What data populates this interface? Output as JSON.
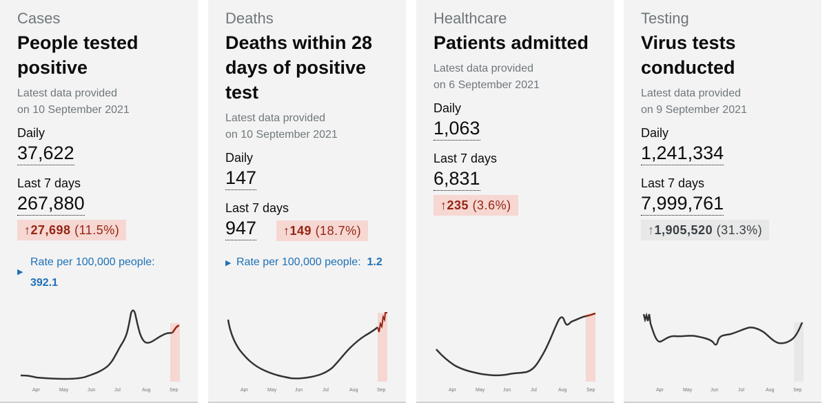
{
  "cards": [
    {
      "category": "Cases",
      "title": "People tested positive",
      "latest_label": "Latest data provided",
      "latest_date": "on 10 September 2021",
      "daily_label": "Daily",
      "daily_value": "37,622",
      "week_label": "Last 7 days",
      "week_value": "267,880",
      "change_arrow": "↑",
      "change_value": "27,698",
      "change_pct": "(11.5%)",
      "rate_label": "Rate per 100,000 people:",
      "rate_value": "392.1",
      "chart_ticks": [
        "Apr",
        "May",
        "Jun",
        "Jul",
        "Aug",
        "Sep"
      ]
    },
    {
      "category": "Deaths",
      "title": "Deaths within 28 days of positive test",
      "latest_label": "Latest data provided",
      "latest_date": "on 10 September 2021",
      "daily_label": "Daily",
      "daily_value": "147",
      "week_label": "Last 7 days",
      "week_value": "947",
      "change_arrow": "↑",
      "change_value": "149",
      "change_pct": "(18.7%)",
      "rate_label": "Rate per 100,000 people:",
      "rate_value": "1.2",
      "chart_ticks": [
        "Apr",
        "May",
        "Jun",
        "Jul",
        "Aug",
        "Sep"
      ]
    },
    {
      "category": "Healthcare",
      "title": "Patients admitted",
      "latest_label": "Latest data provided",
      "latest_date": "on 6 September 2021",
      "daily_label": "Daily",
      "daily_value": "1,063",
      "week_label": "Last 7 days",
      "week_value": "6,831",
      "change_arrow": "↑",
      "change_value": "235",
      "change_pct": "(3.6%)",
      "chart_ticks": [
        "Apr",
        "May",
        "Jun",
        "Jul",
        "Aug",
        "Sep"
      ]
    },
    {
      "category": "Testing",
      "title": "Virus tests conducted",
      "latest_label": "Latest data provided",
      "latest_date": "on 9 September 2021",
      "daily_label": "Daily",
      "daily_value": "1,241,334",
      "week_label": "Last 7 days",
      "week_value": "7,999,761",
      "change_arrow": "↑",
      "change_value": "1,905,520",
      "change_pct": "(31.3%)",
      "chart_ticks": [
        "Apr",
        "May",
        "Jun",
        "Jul",
        "Aug",
        "Sep"
      ]
    }
  ],
  "colors": {
    "card_bg": "#f3f3f3",
    "line": "#333333",
    "recent_line": "#942514",
    "recent_fill": "#f6d7d2",
    "neutral_fill": "#e8e8e8",
    "link": "#1d70b8"
  }
}
